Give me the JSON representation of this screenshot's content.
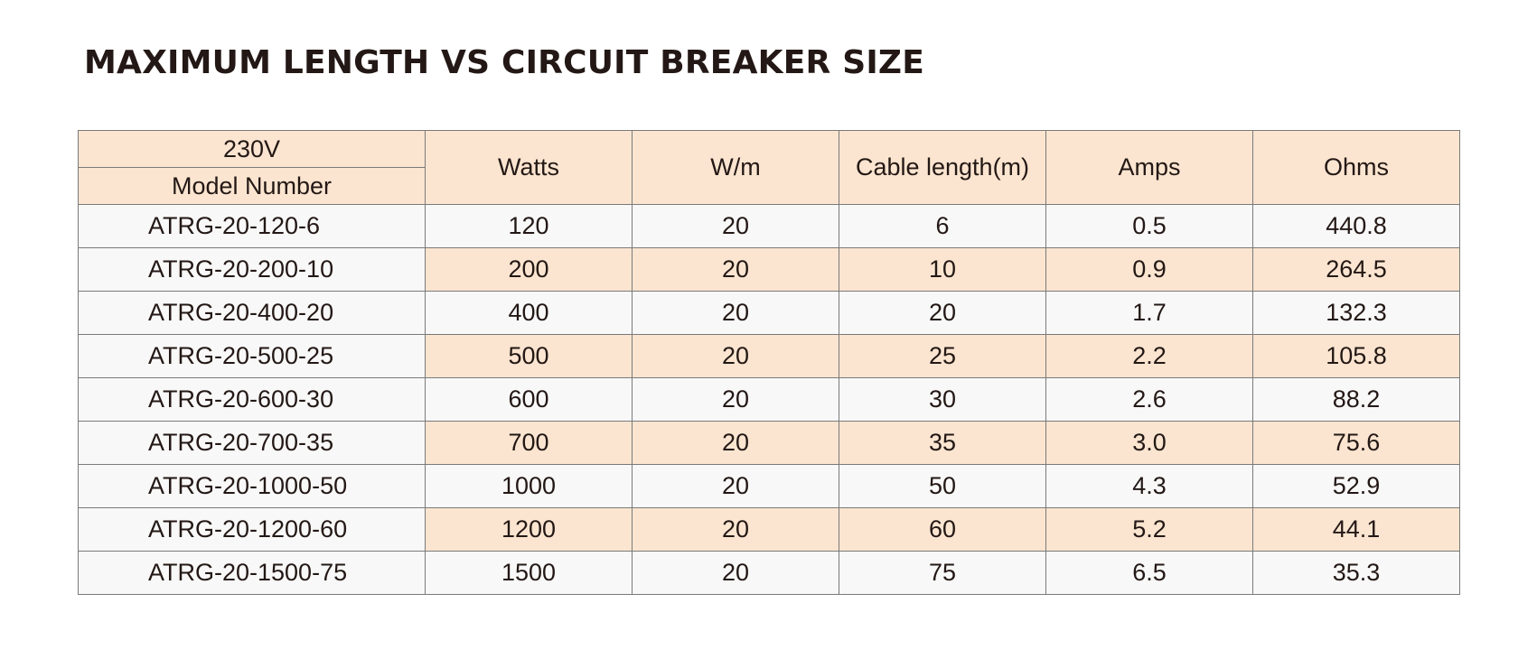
{
  "title": "MAXIMUM LENGTH VS CIRCUIT BREAKER SIZE",
  "table": {
    "voltage_label": "230V",
    "model_header": "Model Number",
    "columns": [
      "Watts",
      "W/m",
      "Cable length(m)",
      "Amps",
      "Ohms"
    ],
    "rows": [
      {
        "model": "ATRG-20-120-6",
        "watts": "120",
        "wpm": "20",
        "length": "6",
        "amps": "0.5",
        "ohms": "440.8"
      },
      {
        "model": "ATRG-20-200-10",
        "watts": "200",
        "wpm": "20",
        "length": "10",
        "amps": "0.9",
        "ohms": "264.5"
      },
      {
        "model": "ATRG-20-400-20",
        "watts": "400",
        "wpm": "20",
        "length": "20",
        "amps": "1.7",
        "ohms": "132.3"
      },
      {
        "model": "ATRG-20-500-25",
        "watts": "500",
        "wpm": "20",
        "length": "25",
        "amps": "2.2",
        "ohms": "105.8"
      },
      {
        "model": "ATRG-20-600-30",
        "watts": "600",
        "wpm": "20",
        "length": "30",
        "amps": "2.6",
        "ohms": "88.2"
      },
      {
        "model": "ATRG-20-700-35",
        "watts": "700",
        "wpm": "20",
        "length": "35",
        "amps": "3.0",
        "ohms": "75.6"
      },
      {
        "model": "ATRG-20-1000-50",
        "watts": "1000",
        "wpm": "20",
        "length": "50",
        "amps": "4.3",
        "ohms": "52.9"
      },
      {
        "model": "ATRG-20-1200-60",
        "watts": "1200",
        "wpm": "20",
        "length": "60",
        "amps": "5.2",
        "ohms": "44.1"
      },
      {
        "model": "ATRG-20-1500-75",
        "watts": "1500",
        "wpm": "20",
        "length": "75",
        "amps": "6.5",
        "ohms": "35.3"
      }
    ]
  },
  "colors": {
    "header_fill": "#fbe5d0",
    "row_fill": "#f8f8f8",
    "alt_row_fill": "#fbe5d0",
    "border": "#7a7a7a",
    "text": "#231815"
  }
}
